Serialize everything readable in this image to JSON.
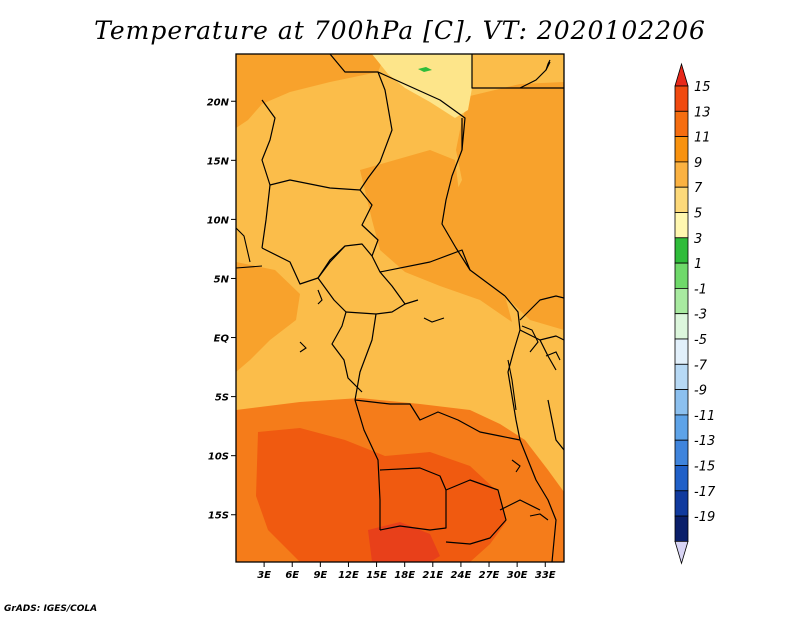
{
  "title": "Temperature at 700hPa [C], VT: 2020102206",
  "credit": "GrADS: IGES/COLA",
  "map": {
    "lon_range": [
      0,
      35
    ],
    "lat_range": [
      -19,
      24
    ],
    "lat_ticks": [
      "20N",
      "15N",
      "10N",
      "5N",
      "EQ",
      "5S",
      "10S",
      "15S"
    ],
    "lon_ticks": [
      "3E",
      "6E",
      "9E",
      "12E",
      "15E",
      "18E",
      "21E",
      "24E",
      "27E",
      "30E",
      "33E"
    ]
  },
  "colorbar": {
    "labels": [
      "15",
      "13",
      "11",
      "9",
      "7",
      "5",
      "3",
      "1",
      "-1",
      "-3",
      "-5",
      "-7",
      "-9",
      "-11",
      "-13",
      "-15",
      "-17",
      "-19"
    ],
    "colors": [
      "#e8281a",
      "#f04a10",
      "#f56d10",
      "#f8920f",
      "#fbb242",
      "#fdd97a",
      "#fff7b0",
      "#2fbc3a",
      "#6fd96a",
      "#a8eaa0",
      "#dcf6dc",
      "#e2f0fb",
      "#b7d9f5",
      "#8cc0ef",
      "#5ea3e8",
      "#3f84dc",
      "#2060c8",
      "#103a9e",
      "#0a1f6a",
      "#d8d4f4"
    ]
  },
  "fields": {
    "pale_yellow": "#fde58a",
    "light_orange": "#fbbd4a",
    "orange": "#f8a22c",
    "dark_orange": "#f57c1a",
    "red_orange": "#f05a10",
    "red": "#e8401a",
    "green_patch": "#2fbc3a"
  }
}
